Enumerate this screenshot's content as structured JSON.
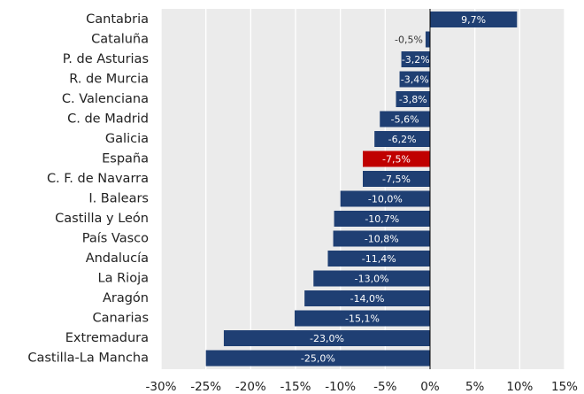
{
  "chart_data": {
    "type": "bar",
    "orientation": "horizontal",
    "categories": [
      "Cantabria",
      "Cataluña",
      "P. de Asturias",
      "R. de Murcia",
      "C. Valenciana",
      "C. de Madrid",
      "Galicia",
      "España",
      "C. F. de Navarra",
      "I. Balears",
      "Castilla y León",
      "País Vasco",
      "Andalucía",
      "La Rioja",
      "Aragón",
      "Canarias",
      "Extremadura",
      "Castilla-La Mancha"
    ],
    "values": [
      9.7,
      -0.5,
      -3.2,
      -3.4,
      -3.8,
      -5.6,
      -6.2,
      -7.5,
      -7.5,
      -10.0,
      -10.7,
      -10.8,
      -11.4,
      -13.0,
      -14.0,
      -15.1,
      -23.0,
      -25.0
    ],
    "value_labels": [
      "9,7%",
      "-0,5%",
      "-3,2%",
      "-3,4%",
      "-3,8%",
      "-5,6%",
      "-6,2%",
      "-7,5%",
      "-7,5%",
      "-10,0%",
      "-10,7%",
      "-10,8%",
      "-11,4%",
      "-13,0%",
      "-14,0%",
      "-15,1%",
      "-23,0%",
      "-25,0%"
    ],
    "colors": [
      "#1f3f73",
      "#1f3f73",
      "#1f3f73",
      "#1f3f73",
      "#1f3f73",
      "#1f3f73",
      "#1f3f73",
      "#c00000",
      "#1f3f73",
      "#1f3f73",
      "#1f3f73",
      "#1f3f73",
      "#1f3f73",
      "#1f3f73",
      "#1f3f73",
      "#1f3f73",
      "#1f3f73",
      "#1f3f73"
    ],
    "xlim": [
      -30,
      15
    ],
    "xticks": [
      {
        "value": -30,
        "label": "-30%"
      },
      {
        "value": -25,
        "label": "-25%"
      },
      {
        "value": -20,
        "label": "-20%"
      },
      {
        "value": -15,
        "label": "-15%"
      },
      {
        "value": -10,
        "label": "-10%"
      },
      {
        "value": -5,
        "label": "-5%"
      },
      {
        "value": 0,
        "label": "0%"
      },
      {
        "value": 5,
        "label": "5%"
      },
      {
        "value": 10,
        "label": "10%"
      },
      {
        "value": 15,
        "label": "15%"
      }
    ],
    "grid": true
  }
}
